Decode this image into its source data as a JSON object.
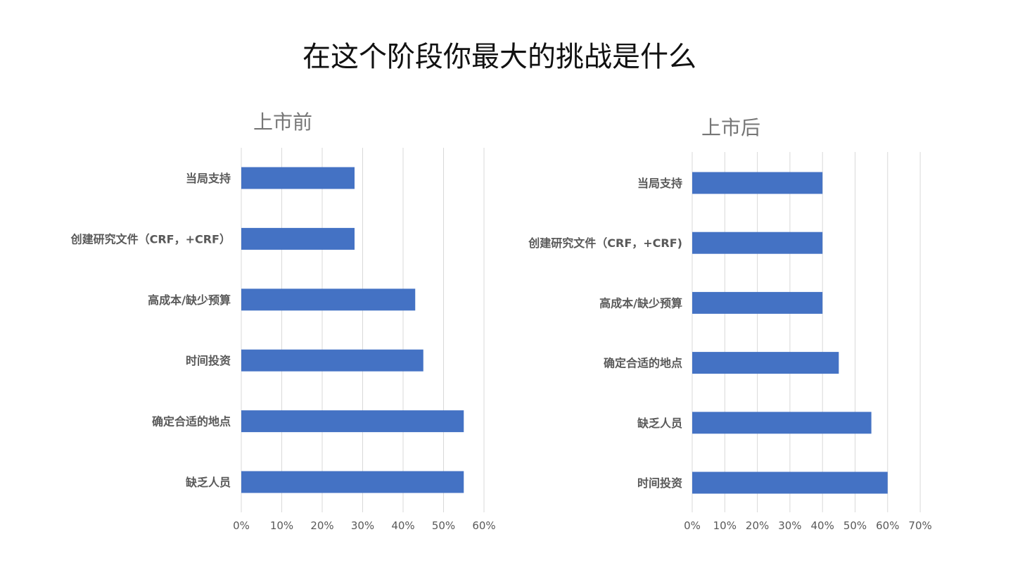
{
  "title": "在这个阶段你最大的挑战是什么",
  "colors": {
    "bar": "#4472c4",
    "grid": "#d9d9d9",
    "text": "#595959",
    "title": "#111111",
    "subtitle": "#767676"
  },
  "chart_data": [
    {
      "type": "bar",
      "orientation": "horizontal",
      "title": "上市前",
      "categories": [
        "当局支持",
        "创建研究文件（CRF，+CRF）",
        "高成本/缺少预算",
        "时间投资",
        "确定合适的地点",
        "缺乏人员"
      ],
      "values": [
        28,
        28,
        43,
        45,
        55,
        55
      ],
      "xlim": [
        0,
        60
      ],
      "ticks": [
        "0%",
        "10%",
        "20%",
        "30%",
        "40%",
        "50%",
        "60%"
      ],
      "grid": true
    },
    {
      "type": "bar",
      "orientation": "horizontal",
      "title": "上市后",
      "categories": [
        "当局支持",
        "创建研究文件（CRF，+CRF)",
        "高成本/缺少预算",
        "确定合适的地点",
        "缺乏人员",
        "时间投资"
      ],
      "values": [
        40,
        40,
        40,
        45,
        55,
        60
      ],
      "xlim": [
        0,
        70
      ],
      "ticks": [
        "0%",
        "10%",
        "20%",
        "30%",
        "40%",
        "50%",
        "60%",
        "70%"
      ],
      "grid": true
    }
  ]
}
